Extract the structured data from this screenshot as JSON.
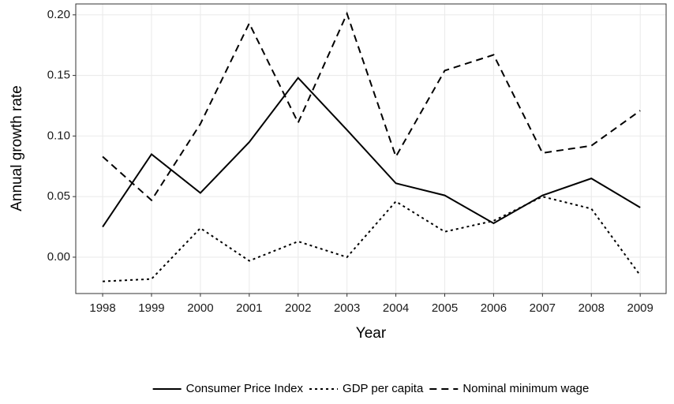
{
  "chart_data": {
    "type": "line",
    "x_label": "Year",
    "y_label": "Annual growth rate",
    "x": [
      1998,
      1999,
      2000,
      2001,
      2002,
      2003,
      2004,
      2005,
      2006,
      2007,
      2008,
      2009
    ],
    "series": [
      {
        "name": "Consumer Price Index",
        "color": "#000000",
        "linestyle": "solid",
        "values": [
          0.025,
          0.085,
          0.053,
          0.095,
          0.148,
          0.105,
          0.061,
          0.051,
          0.028,
          0.051,
          0.065,
          0.041
        ]
      },
      {
        "name": "GDP per capita",
        "color": "#000000",
        "linestyle": "dotted",
        "values": [
          -0.02,
          -0.018,
          0.024,
          -0.003,
          0.013,
          0.0,
          0.046,
          0.021,
          0.03,
          0.05,
          0.04,
          -0.015
        ]
      },
      {
        "name": "Nominal minimum wage",
        "color": "#000000",
        "linestyle": "dashed",
        "values": [
          0.083,
          0.047,
          0.11,
          0.193,
          0.111,
          0.201,
          0.083,
          0.154,
          0.167,
          0.086,
          0.092,
          0.121
        ]
      }
    ],
    "xlim": [
      1997.45,
      2009.53
    ],
    "xticks": [
      1998,
      1999,
      2000,
      2001,
      2002,
      2003,
      2004,
      2005,
      2006,
      2007,
      2008,
      2009
    ],
    "ylim": [
      -0.03,
      0.209
    ],
    "yticks": [
      {
        "value": 0,
        "label": "0.00"
      },
      0.05,
      {
        "value": 0.1,
        "label": "0.10"
      },
      0.15,
      {
        "value": 0.2,
        "label": "0.20"
      }
    ],
    "grid": true,
    "legend": "bottom"
  }
}
